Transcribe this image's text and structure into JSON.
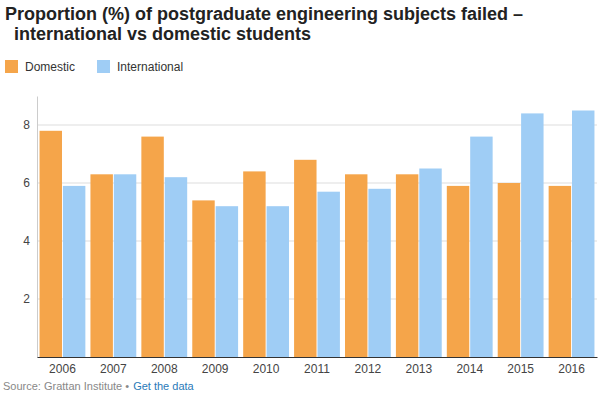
{
  "chart_data": {
    "type": "bar",
    "title": "Proportion (%) of postgraduate engineering subjects failed – international vs domestic students",
    "categories": [
      "2006",
      "2007",
      "2008",
      "2009",
      "2010",
      "2011",
      "2012",
      "2013",
      "2014",
      "2015",
      "2016"
    ],
    "series": [
      {
        "name": "Domestic",
        "color": "#f5a54a",
        "values": [
          7.8,
          6.3,
          7.6,
          5.4,
          6.4,
          6.8,
          6.3,
          6.3,
          5.9,
          6.0,
          5.9
        ]
      },
      {
        "name": "International",
        "color": "#9fcdf5",
        "values": [
          5.9,
          6.3,
          6.2,
          5.2,
          5.2,
          5.7,
          5.8,
          6.5,
          7.6,
          8.4,
          8.5
        ]
      }
    ],
    "ylim": [
      0,
      9
    ],
    "yticks": [
      2,
      4,
      6,
      8
    ],
    "grid": true,
    "legend": "top-left",
    "source": "Source: Grattan Institute •",
    "source_link": "Get the data"
  }
}
